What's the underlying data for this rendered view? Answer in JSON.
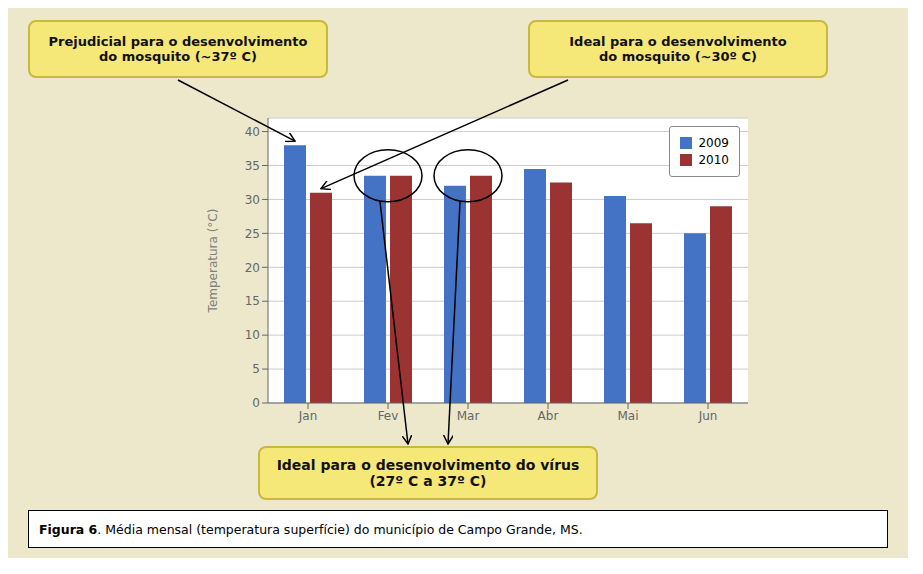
{
  "chart_data": {
    "type": "bar",
    "categories": [
      "Jan",
      "Fev",
      "Mar",
      "Abr",
      "Mai",
      "Jun"
    ],
    "series": [
      {
        "name": "2009",
        "color": "#4472C4",
        "values": [
          38.0,
          33.5,
          32.0,
          34.5,
          30.5,
          25.0
        ]
      },
      {
        "name": "2010",
        "color": "#9B3333",
        "values": [
          31.0,
          33.5,
          33.5,
          32.5,
          26.5,
          29.0
        ]
      }
    ],
    "y_label": "Temperatura (°C)",
    "ylim": [
      0,
      42
    ],
    "yticks": [
      0,
      5,
      10,
      15,
      20,
      25,
      30,
      35,
      40
    ],
    "grid": true,
    "legend": "upper right",
    "annotations": [
      "Prejudicial para o desenvolvimento\ndo mosquito (~37º C)",
      "Ideal para o desenvolvimento\ndo mosquito (~30º C)",
      "Ideal para o desenvolvimento do vírus\n(27º C a 37º C)",
      "Figura 6. Média mensal (temperatura superfície) do município de Campo Grande, MS."
    ]
  }
}
